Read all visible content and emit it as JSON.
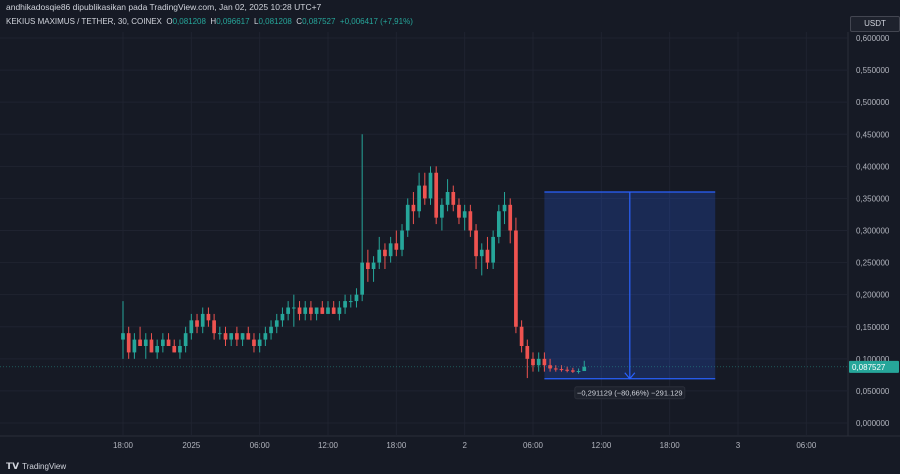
{
  "header": {
    "published_by": "andhikadosqie86 dipublikasikan pada TradingView.com, Jan 02, 2025 10:28 UTC+7"
  },
  "symbol": {
    "name": "KEKIUS MAXIMUS / TETHER, 30, COINEX",
    "o_label": "O",
    "o": "0,081208",
    "h_label": "H",
    "h": "0,096617",
    "l_label": "L",
    "l": "0,081208",
    "c_label": "C",
    "c": "0,087527",
    "change": "+0,006417 (+7,91%)"
  },
  "currency_button": "USDT",
  "current_price_label": "0,087527",
  "measure_label": "−0,291129 (−80,66%) −291.129",
  "footer_brand": "TradingView",
  "colors": {
    "up": "#26a69a",
    "down": "#ef5350",
    "measure": "#2962ff"
  },
  "chart_data": {
    "type": "candlestick",
    "y_ticks": [
      "0,600000",
      "0,550000",
      "0,500000",
      "0,450000",
      "0,400000",
      "0,350000",
      "0,300000",
      "0,250000",
      "0,200000",
      "0,150000",
      "0,100000",
      "0,050000",
      "0,000000"
    ],
    "y_tick_values": [
      0.6,
      0.55,
      0.5,
      0.45,
      0.4,
      0.35,
      0.3,
      0.25,
      0.2,
      0.15,
      0.1,
      0.05,
      0.0
    ],
    "ylim": [
      0,
      0.6
    ],
    "x_ticks": [
      "18:00",
      "2025",
      "06:00",
      "12:00",
      "18:00",
      "2",
      "06:00",
      "12:00",
      "18:00",
      "3",
      "06:00"
    ],
    "x_tick_hours": [
      18,
      24,
      30,
      36,
      42,
      48,
      54,
      60,
      66,
      72,
      78
    ],
    "candle_interval_hours": 0.5,
    "first_candle_hour": 18,
    "current_price": 0.087527,
    "measure": {
      "start_hour": 55,
      "end_hour": 70,
      "from_price": 0.36,
      "to_price": 0.069
    },
    "ohlc": [
      [
        0.13,
        0.19,
        0.1,
        0.14
      ],
      [
        0.14,
        0.15,
        0.1,
        0.11
      ],
      [
        0.11,
        0.14,
        0.1,
        0.13
      ],
      [
        0.13,
        0.15,
        0.12,
        0.12
      ],
      [
        0.12,
        0.14,
        0.1,
        0.13
      ],
      [
        0.13,
        0.14,
        0.11,
        0.11
      ],
      [
        0.11,
        0.13,
        0.1,
        0.12
      ],
      [
        0.12,
        0.14,
        0.11,
        0.13
      ],
      [
        0.13,
        0.14,
        0.12,
        0.12
      ],
      [
        0.12,
        0.13,
        0.11,
        0.11
      ],
      [
        0.11,
        0.13,
        0.1,
        0.12
      ],
      [
        0.12,
        0.15,
        0.11,
        0.14
      ],
      [
        0.14,
        0.17,
        0.13,
        0.16
      ],
      [
        0.16,
        0.17,
        0.14,
        0.15
      ],
      [
        0.15,
        0.18,
        0.14,
        0.17
      ],
      [
        0.17,
        0.18,
        0.15,
        0.16
      ],
      [
        0.16,
        0.17,
        0.13,
        0.14
      ],
      [
        0.14,
        0.15,
        0.13,
        0.14
      ],
      [
        0.14,
        0.15,
        0.12,
        0.13
      ],
      [
        0.13,
        0.14,
        0.12,
        0.14
      ],
      [
        0.14,
        0.15,
        0.12,
        0.13
      ],
      [
        0.13,
        0.14,
        0.12,
        0.14
      ],
      [
        0.14,
        0.15,
        0.13,
        0.13
      ],
      [
        0.13,
        0.14,
        0.11,
        0.12
      ],
      [
        0.12,
        0.14,
        0.11,
        0.13
      ],
      [
        0.13,
        0.15,
        0.12,
        0.14
      ],
      [
        0.14,
        0.16,
        0.13,
        0.15
      ],
      [
        0.15,
        0.17,
        0.14,
        0.16
      ],
      [
        0.16,
        0.18,
        0.15,
        0.17
      ],
      [
        0.17,
        0.19,
        0.16,
        0.18
      ],
      [
        0.18,
        0.2,
        0.15,
        0.18
      ],
      [
        0.18,
        0.19,
        0.16,
        0.17
      ],
      [
        0.17,
        0.19,
        0.16,
        0.18
      ],
      [
        0.18,
        0.19,
        0.16,
        0.17
      ],
      [
        0.17,
        0.18,
        0.16,
        0.18
      ],
      [
        0.18,
        0.19,
        0.17,
        0.17
      ],
      [
        0.17,
        0.19,
        0.17,
        0.18
      ],
      [
        0.18,
        0.19,
        0.17,
        0.17
      ],
      [
        0.17,
        0.19,
        0.16,
        0.18
      ],
      [
        0.18,
        0.2,
        0.17,
        0.19
      ],
      [
        0.19,
        0.2,
        0.18,
        0.19
      ],
      [
        0.19,
        0.21,
        0.18,
        0.2
      ],
      [
        0.2,
        0.45,
        0.19,
        0.25
      ],
      [
        0.25,
        0.27,
        0.22,
        0.24
      ],
      [
        0.24,
        0.26,
        0.22,
        0.25
      ],
      [
        0.25,
        0.29,
        0.24,
        0.27
      ],
      [
        0.27,
        0.28,
        0.24,
        0.26
      ],
      [
        0.26,
        0.29,
        0.25,
        0.28
      ],
      [
        0.28,
        0.3,
        0.26,
        0.27
      ],
      [
        0.27,
        0.31,
        0.26,
        0.3
      ],
      [
        0.3,
        0.35,
        0.29,
        0.34
      ],
      [
        0.34,
        0.36,
        0.31,
        0.33
      ],
      [
        0.33,
        0.39,
        0.32,
        0.37
      ],
      [
        0.37,
        0.39,
        0.34,
        0.35
      ],
      [
        0.35,
        0.4,
        0.34,
        0.39
      ],
      [
        0.39,
        0.4,
        0.31,
        0.32
      ],
      [
        0.32,
        0.35,
        0.3,
        0.34
      ],
      [
        0.34,
        0.38,
        0.33,
        0.36
      ],
      [
        0.36,
        0.37,
        0.33,
        0.34
      ],
      [
        0.34,
        0.35,
        0.31,
        0.32
      ],
      [
        0.32,
        0.34,
        0.3,
        0.33
      ],
      [
        0.33,
        0.34,
        0.29,
        0.3
      ],
      [
        0.3,
        0.31,
        0.24,
        0.26
      ],
      [
        0.26,
        0.28,
        0.23,
        0.27
      ],
      [
        0.27,
        0.29,
        0.24,
        0.25
      ],
      [
        0.25,
        0.3,
        0.24,
        0.29
      ],
      [
        0.29,
        0.34,
        0.28,
        0.33
      ],
      [
        0.33,
        0.36,
        0.31,
        0.34
      ],
      [
        0.34,
        0.35,
        0.28,
        0.3
      ],
      [
        0.3,
        0.32,
        0.14,
        0.15
      ],
      [
        0.15,
        0.16,
        0.11,
        0.12
      ],
      [
        0.12,
        0.13,
        0.07,
        0.1
      ],
      [
        0.1,
        0.11,
        0.08,
        0.09
      ],
      [
        0.09,
        0.11,
        0.08,
        0.1
      ],
      [
        0.1,
        0.11,
        0.08,
        0.09
      ],
      [
        0.09,
        0.1,
        0.08,
        0.085
      ],
      [
        0.085,
        0.09,
        0.08,
        0.084
      ],
      [
        0.084,
        0.09,
        0.08,
        0.083
      ],
      [
        0.083,
        0.088,
        0.079,
        0.082
      ],
      [
        0.082,
        0.086,
        0.078,
        0.08
      ],
      [
        0.08,
        0.085,
        0.077,
        0.081
      ],
      [
        0.081,
        0.097,
        0.081,
        0.0875
      ]
    ]
  }
}
